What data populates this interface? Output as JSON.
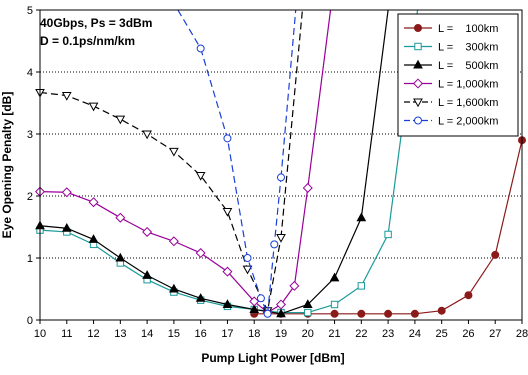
{
  "chart_data": {
    "type": "line",
    "title": "",
    "annotations": [
      "40Gbps, Ps = 3dBm",
      "D = 0.1ps/nm/km"
    ],
    "xlabel": "Pump Light Power [dBm]",
    "ylabel": "Eye Opening Penalty [dB]",
    "xlim": [
      10,
      28
    ],
    "ylim": [
      0,
      5
    ],
    "x_ticks": [
      "10",
      "11",
      "12",
      "13",
      "14",
      "15",
      "16",
      "17",
      "18",
      "19",
      "20",
      "21",
      "22",
      "23",
      "24",
      "25",
      "26",
      "27",
      "28"
    ],
    "y_ticks": [
      "0",
      "1",
      "2",
      "3",
      "4",
      "5"
    ],
    "grid": "horizontal dotted",
    "legend_position": "top-right",
    "series": [
      {
        "name": "L =    100km",
        "color": "#8b1a1a",
        "marker": "circle-filled",
        "dash": "solid",
        "x": [
          18,
          19,
          20,
          21,
          22,
          23,
          24,
          25,
          26,
          27,
          28
        ],
        "y": [
          0.1,
          0.1,
          0.1,
          0.1,
          0.1,
          0.1,
          0.1,
          0.15,
          0.4,
          1.05,
          2.9
        ],
        "x_tail": [],
        "y_tail": []
      },
      {
        "name": "L =    300km",
        "color": "#1a9a9a",
        "marker": "square-open",
        "dash": "solid",
        "x": [
          10,
          11,
          12,
          13,
          14,
          15,
          16,
          17,
          18,
          19,
          20,
          21,
          22,
          23
        ],
        "y": [
          1.45,
          1.42,
          1.22,
          0.92,
          0.65,
          0.45,
          0.32,
          0.22,
          0.17,
          0.12,
          0.12,
          0.25,
          0.55,
          1.38
        ],
        "x_tail": [
          23,
          24.1
        ],
        "y_tail": [
          1.38,
          5.0
        ]
      },
      {
        "name": "L =    500km",
        "color": "#000000",
        "marker": "triangle-filled",
        "dash": "solid",
        "x": [
          10,
          11,
          12,
          13,
          14,
          15,
          16,
          17,
          18,
          19,
          20,
          21,
          22
        ],
        "y": [
          1.52,
          1.48,
          1.3,
          1.0,
          0.72,
          0.5,
          0.35,
          0.25,
          0.17,
          0.1,
          0.25,
          0.68,
          1.65
        ],
        "x_tail": [
          22,
          23.0
        ],
        "y_tail": [
          1.65,
          5.0
        ]
      },
      {
        "name": "L = 1,000km",
        "color": "#990099",
        "marker": "diamond-open",
        "dash": "solid",
        "x": [
          10,
          11,
          12,
          13,
          14,
          15,
          16,
          17,
          18,
          18.5,
          19,
          19.5,
          20
        ],
        "y": [
          2.07,
          2.06,
          1.9,
          1.65,
          1.42,
          1.27,
          1.08,
          0.78,
          0.3,
          0.12,
          0.25,
          0.55,
          2.13
        ],
        "x_tail": [
          20,
          20.85
        ],
        "y_tail": [
          2.13,
          5.0
        ]
      },
      {
        "name": "L = 1,600km",
        "color": "#000000",
        "marker": "triangle-down-open",
        "dash": "dashed",
        "x": [
          10,
          11,
          12,
          13,
          14,
          15,
          16,
          17,
          17.75,
          18.5,
          19
        ],
        "y": [
          3.67,
          3.62,
          3.45,
          3.24,
          3.0,
          2.72,
          2.33,
          1.75,
          0.82,
          0.15,
          1.33
        ],
        "x_tail": [
          19,
          19.8
        ],
        "y_tail": [
          1.33,
          5.0
        ]
      },
      {
        "name": "L = 2,000km",
        "color": "#1a3fd6",
        "marker": "circle-open",
        "dash": "dashed",
        "x": [
          16,
          17,
          17.75,
          18.25,
          18.5,
          18.75,
          19
        ],
        "y": [
          4.38,
          2.93,
          1.0,
          0.35,
          0.1,
          1.22,
          2.3
        ],
        "x_tail": [
          19,
          19.55
        ],
        "y_tail": [
          2.3,
          5.0
        ],
        "x_head": [
          15.15,
          16
        ],
        "y_head": [
          5.0,
          4.38
        ]
      }
    ]
  }
}
